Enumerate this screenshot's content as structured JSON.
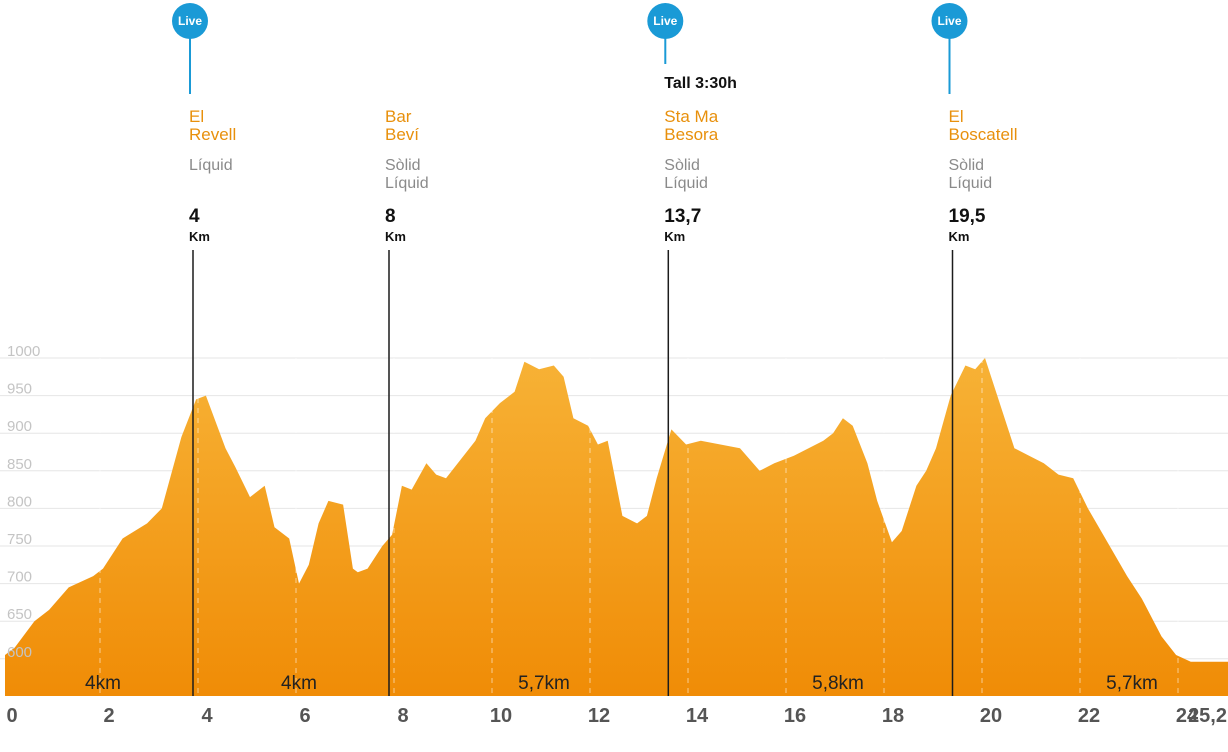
{
  "chart_data": {
    "type": "area",
    "title": "",
    "xlabel": "",
    "ylabel": "",
    "xlim": [
      0,
      25.2
    ],
    "ylim": [
      600,
      1000
    ],
    "grid": true,
    "x_ticks": [
      "0",
      "2",
      "4",
      "6",
      "8",
      "10",
      "12",
      "14",
      "16",
      "18",
      "20",
      "22",
      "24",
      "25,2"
    ],
    "y_ticks": [
      "1000",
      "950",
      "900",
      "850",
      "800",
      "750",
      "700",
      "650",
      "600"
    ],
    "segments": [
      {
        "label": "4km",
        "x": 2
      },
      {
        "label": "4km",
        "x": 6
      },
      {
        "label": "5,7km",
        "x": 11
      },
      {
        "label": "5,8km",
        "x": 17
      },
      {
        "label": "5,7km",
        "x": 23
      }
    ],
    "stations": [
      {
        "name_lines": [
          "El",
          "Revell"
        ],
        "supplies": [
          "Líquid"
        ],
        "km": "4",
        "km_value": 4,
        "unit": "Km",
        "live": "Live",
        "cutoff": ""
      },
      {
        "name_lines": [
          "Bar",
          "Beví"
        ],
        "supplies": [
          "Sòlid",
          "Líquid"
        ],
        "km": "8",
        "km_value": 8,
        "unit": "Km",
        "live": "",
        "cutoff": ""
      },
      {
        "name_lines": [
          "Sta Ma",
          "Besora"
        ],
        "supplies": [
          "Sòlid",
          "Líquid"
        ],
        "km": "13,7",
        "km_value": 13.7,
        "unit": "Km",
        "live": "Live",
        "cutoff": "Tall 3:30h"
      },
      {
        "name_lines": [
          "El",
          "Boscatell"
        ],
        "supplies": [
          "Sòlid",
          "Líquid"
        ],
        "km": "19,5",
        "km_value": 19.5,
        "unit": "Km",
        "live": "Live",
        "cutoff": ""
      }
    ],
    "series": [
      {
        "x": [
          0,
          0.2,
          0.6,
          0.9,
          1.3,
          1.8,
          2.0,
          2.4,
          2.9,
          3.2,
          3.6,
          3.9,
          4.1,
          4.5,
          4.7,
          5.0,
          5.3,
          5.5,
          5.8,
          6.0,
          6.2,
          6.4,
          6.6,
          6.9,
          7.1,
          7.2,
          7.4,
          7.7,
          7.9,
          8.1,
          8.3,
          8.6,
          8.8,
          9.0,
          9.3,
          9.6,
          9.8,
          10.1,
          10.4,
          10.6,
          10.9,
          11.2,
          11.4,
          11.6,
          11.9,
          12.1,
          12.3,
          12.6,
          12.9,
          13.1,
          13.3,
          13.6,
          13.9,
          14.2,
          14.6,
          15.0,
          15.4,
          15.7,
          16.1,
          16.4,
          16.7,
          16.9,
          17.1,
          17.3,
          17.6,
          17.8,
          18.1,
          18.3,
          18.6,
          18.8,
          19.0,
          19.3,
          19.6,
          19.8,
          20.0,
          20.3,
          20.6,
          20.9,
          21.2,
          21.5,
          21.8,
          22.1,
          22.5,
          22.9,
          23.2,
          23.6,
          23.9,
          24.2,
          24.6,
          25.0,
          25.2
        ],
        "values": [
          605,
          615,
          650,
          665,
          695,
          710,
          720,
          760,
          780,
          800,
          895,
          945,
          950,
          880,
          855,
          815,
          830,
          775,
          760,
          700,
          725,
          780,
          810,
          805,
          720,
          715,
          720,
          750,
          765,
          830,
          825,
          860,
          845,
          840,
          865,
          890,
          920,
          940,
          955,
          995,
          985,
          990,
          975,
          920,
          910,
          885,
          890,
          790,
          780,
          790,
          840,
          905,
          885,
          890,
          885,
          880,
          850,
          860,
          870,
          880,
          890,
          900,
          920,
          910,
          860,
          810,
          755,
          770,
          830,
          850,
          880,
          950,
          990,
          985,
          1000,
          940,
          880,
          870,
          860,
          845,
          840,
          800,
          755,
          710,
          680,
          630,
          605,
          596,
          596,
          596,
          596
        ]
      }
    ]
  }
}
